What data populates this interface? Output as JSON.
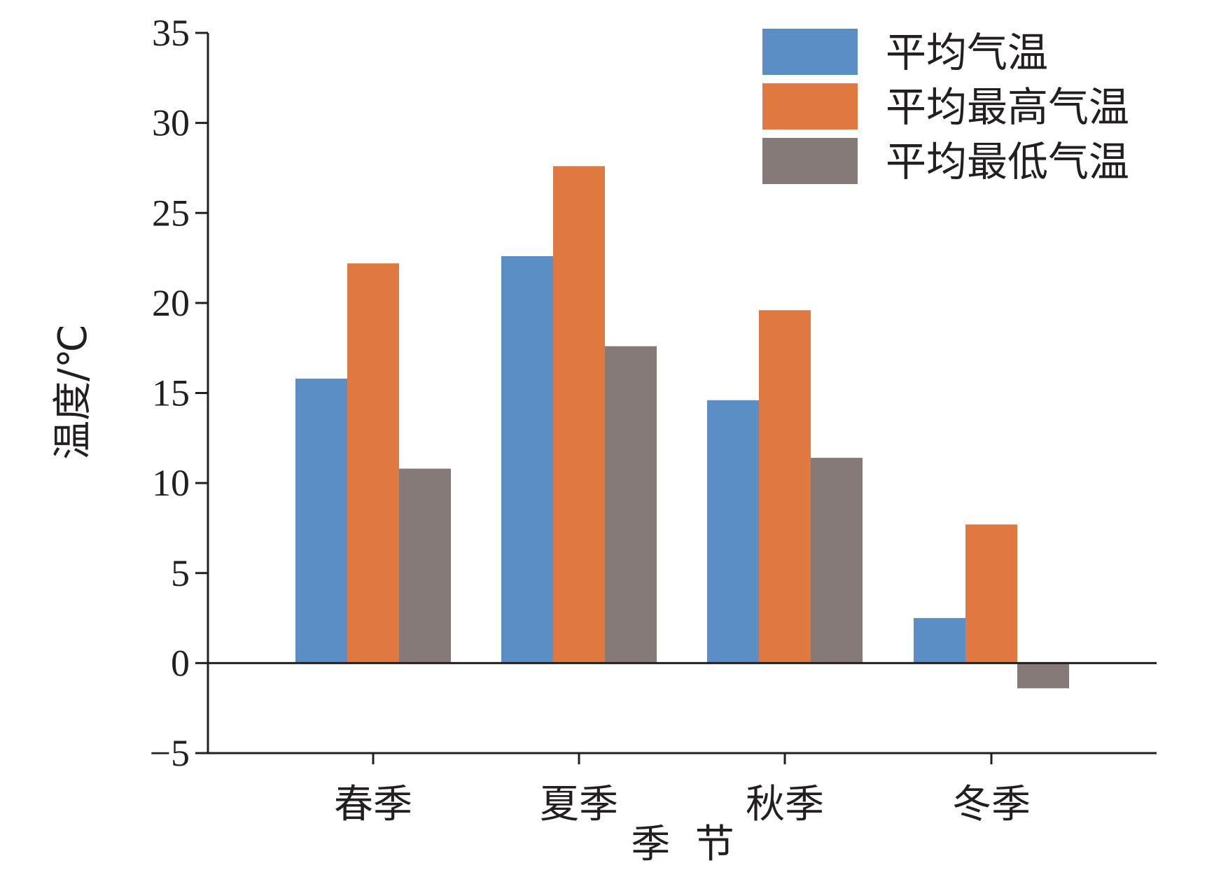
{
  "chart_data": {
    "type": "bar",
    "categories": [
      "春季",
      "夏季",
      "秋季",
      "冬季"
    ],
    "series": [
      {
        "name": "平均气温",
        "values": [
          15.8,
          22.6,
          14.6,
          2.5
        ],
        "color": "#5b8ec4"
      },
      {
        "name": "平均最高气温",
        "values": [
          22.2,
          27.6,
          19.6,
          7.7
        ],
        "color": "#e07841"
      },
      {
        "name": "平均最低气温",
        "values": [
          10.8,
          17.6,
          11.4,
          -1.4
        ],
        "color": "#857a78"
      }
    ],
    "xlabel": "季  节",
    "ylabel": "温度/℃",
    "ylim": [
      -5,
      35
    ],
    "yticks": [
      -5,
      0,
      5,
      10,
      15,
      20,
      25,
      30,
      35
    ],
    "ytick_labels": [
      "−5",
      "0",
      "5",
      "10",
      "15",
      "20",
      "25",
      "30",
      "35"
    ],
    "grid": false,
    "legend_position": "top-right"
  }
}
